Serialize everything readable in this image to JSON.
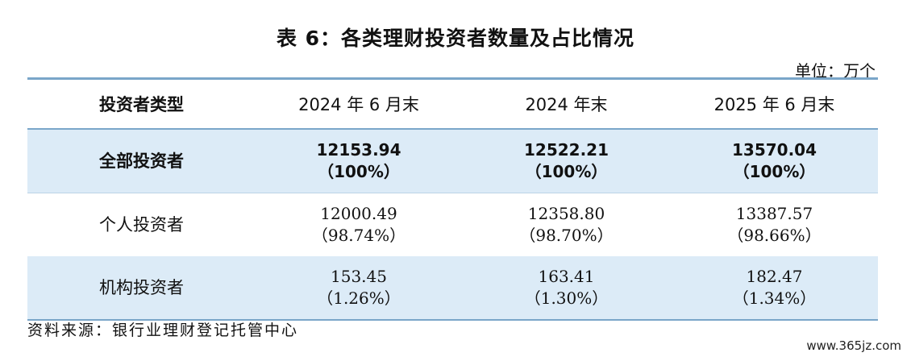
{
  "title": "表 6：各类理财投资者数量及占比情况",
  "unit": "单位：万个",
  "columns": [
    "投资者类型",
    "2024 年 6 月末",
    "2024 年末",
    "2025 年 6 月末"
  ],
  "rows": [
    {
      "label": "全部投资者",
      "cells": [
        {
          "value": "12153.94",
          "pct": "（100%）"
        },
        {
          "value": "12522.21",
          "pct": "（100%）"
        },
        {
          "value": "13570.04",
          "pct": "（100%）"
        }
      ]
    },
    {
      "label": "个人投资者",
      "cells": [
        {
          "value": "12000.49",
          "pct": "（98.74%）"
        },
        {
          "value": "12358.80",
          "pct": "（98.70%）"
        },
        {
          "value": "13387.57",
          "pct": "（98.66%）"
        }
      ]
    },
    {
      "label": "机构投资者",
      "cells": [
        {
          "value": "153.45",
          "pct": "（1.26%）"
        },
        {
          "value": "163.41",
          "pct": "（1.30%）"
        },
        {
          "value": "182.47",
          "pct": "（1.34%）"
        }
      ]
    }
  ],
  "source": "资料来源：银行业理财登记托管中心",
  "watermark": "www.365jz.com"
}
